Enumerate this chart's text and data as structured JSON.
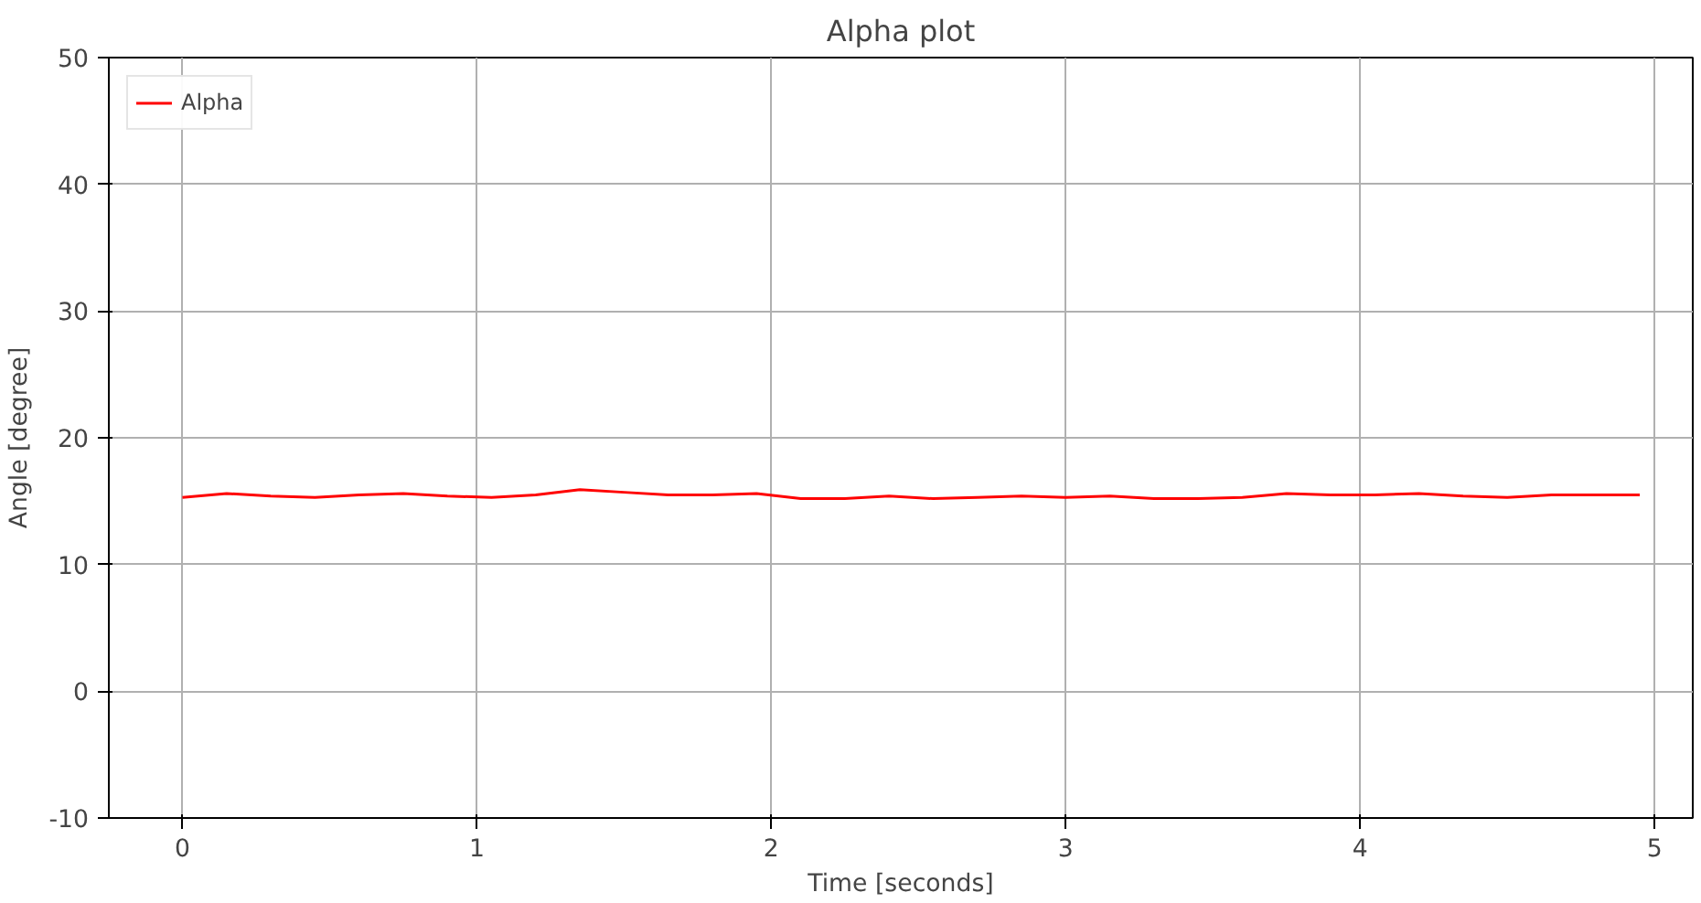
{
  "chart_data": {
    "type": "line",
    "title": "Alpha plot",
    "xlabel": "Time [seconds]",
    "ylabel": "Angle [degree]",
    "x": [
      0,
      0.15,
      0.3,
      0.45,
      0.6,
      0.75,
      0.9,
      1.05,
      1.2,
      1.35,
      1.5,
      1.65,
      1.8,
      1.95,
      2.1,
      2.25,
      2.4,
      2.55,
      2.7,
      2.85,
      3.0,
      3.15,
      3.3,
      3.45,
      3.6,
      3.75,
      3.9,
      4.05,
      4.2,
      4.35,
      4.5,
      4.65,
      4.8,
      4.95
    ],
    "series": [
      {
        "name": "Alpha",
        "color": "#ff0000",
        "values": [
          15.3,
          15.6,
          15.4,
          15.3,
          15.5,
          15.6,
          15.4,
          15.3,
          15.5,
          15.9,
          15.7,
          15.5,
          15.5,
          15.6,
          15.2,
          15.2,
          15.4,
          15.2,
          15.3,
          15.4,
          15.3,
          15.4,
          15.2,
          15.2,
          15.3,
          15.6,
          15.5,
          15.5,
          15.6,
          15.4,
          15.3,
          15.5,
          15.5,
          15.5
        ]
      }
    ],
    "xlim": [
      -0.25,
      5.13
    ],
    "ylim": [
      -10,
      50
    ],
    "xticks": [
      0,
      1,
      2,
      3,
      4,
      5
    ],
    "yticks": [
      -10,
      0,
      10,
      20,
      30,
      40,
      50
    ],
    "grid": true,
    "legend": "top left",
    "marker": "none",
    "line_style": "solid"
  }
}
